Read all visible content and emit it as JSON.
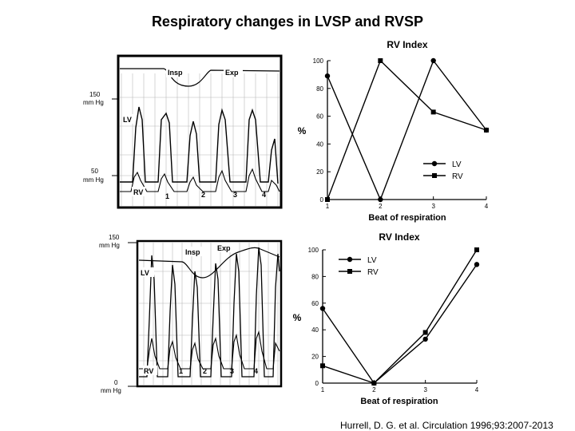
{
  "slide": {
    "title": "Respiratory changes in LVSP and RVSP",
    "citation": "Hurrell, D. G. et al. Circulation 1996;93:2007-2013"
  },
  "tracings": {
    "top": {
      "labels": {
        "insp": "Insp",
        "exp": "Exp",
        "high_value": "150",
        "high_unit": "mm Hg",
        "low_value": "50",
        "low_unit": "mm Hg",
        "lv": "LV",
        "rv": "RV",
        "beats": [
          "1",
          "2",
          "3",
          "4"
        ]
      }
    },
    "bottom": {
      "labels": {
        "insp": "Insp",
        "exp": "Exp",
        "high_value": "150",
        "high_unit": "mm Hg",
        "low_value": "0",
        "low_unit": "mm Hg",
        "lv": "LV",
        "rv": "RV",
        "beats": [
          "1",
          "2",
          "3",
          "4"
        ]
      }
    }
  },
  "chart_data": [
    {
      "type": "line",
      "title": "RV Index",
      "xlabel": "Beat of respiration",
      "ylabel": "%",
      "x": [
        1,
        2,
        3,
        4
      ],
      "xticks": [
        "1",
        "2",
        "3",
        "4"
      ],
      "yticks": [
        "0",
        "20",
        "40",
        "60",
        "80",
        "100"
      ],
      "ylim": [
        0,
        100
      ],
      "legend_position": "bottom-right",
      "series": [
        {
          "name": "LV",
          "marker": "circle",
          "values": [
            89,
            0,
            100,
            50
          ]
        },
        {
          "name": "RV",
          "marker": "square",
          "values": [
            0,
            100,
            63,
            50
          ]
        }
      ]
    },
    {
      "type": "line",
      "title": "RV Index",
      "xlabel": "Beat of respiration",
      "ylabel": "%",
      "x": [
        1,
        2,
        3,
        4
      ],
      "xticks": [
        "1",
        "2",
        "3",
        "4"
      ],
      "yticks": [
        "0",
        "20",
        "40",
        "60",
        "80",
        "100"
      ],
      "ylim": [
        0,
        100
      ],
      "legend_position": "top-left",
      "series": [
        {
          "name": "LV",
          "marker": "circle",
          "values": [
            56,
            0,
            33,
            89
          ]
        },
        {
          "name": "RV",
          "marker": "square",
          "values": [
            13,
            0,
            38,
            100
          ]
        }
      ]
    }
  ]
}
